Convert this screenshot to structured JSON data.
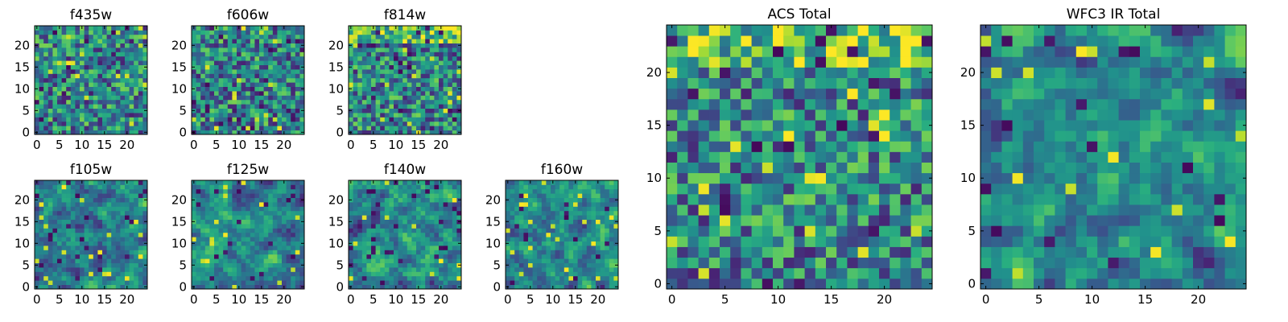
{
  "chart_data": [
    {
      "type": "heatmap",
      "title": "f435w",
      "xlabel": "",
      "ylabel": "",
      "xlim": [
        0,
        24
      ],
      "ylim": [
        0,
        24
      ],
      "grid": false,
      "xticks": [
        "0",
        "5",
        "10",
        "15",
        "20"
      ],
      "yticks": [
        "0",
        "5",
        "10",
        "15",
        "20"
      ],
      "cmap": "viridis",
      "size": 25,
      "seed": 11,
      "pattern": "noise"
    },
    {
      "type": "heatmap",
      "title": "f606w",
      "xlabel": "",
      "ylabel": "",
      "xlim": [
        0,
        24
      ],
      "ylim": [
        0,
        24
      ],
      "grid": false,
      "xticks": [
        "0",
        "5",
        "10",
        "15",
        "20"
      ],
      "yticks": [
        "0",
        "5",
        "10",
        "15",
        "20"
      ],
      "cmap": "viridis",
      "size": 25,
      "seed": 23,
      "pattern": "noise"
    },
    {
      "type": "heatmap",
      "title": "f814w",
      "xlabel": "",
      "ylabel": "",
      "xlim": [
        0,
        24
      ],
      "ylim": [
        0,
        24
      ],
      "grid": false,
      "xticks": [
        "0",
        "5",
        "10",
        "15",
        "20"
      ],
      "yticks": [
        "0",
        "5",
        "10",
        "15",
        "20"
      ],
      "cmap": "viridis",
      "size": 25,
      "seed": 37,
      "pattern": "topband"
    },
    {
      "type": "heatmap",
      "title": "f105w",
      "xlabel": "",
      "ylabel": "",
      "xlim": [
        0,
        24
      ],
      "ylim": [
        0,
        24
      ],
      "grid": false,
      "xticks": [
        "0",
        "5",
        "10",
        "15",
        "20"
      ],
      "yticks": [
        "0",
        "5",
        "10",
        "15",
        "20"
      ],
      "cmap": "viridis",
      "size": 25,
      "seed": 41,
      "pattern": "smooth"
    },
    {
      "type": "heatmap",
      "title": "f125w",
      "xlabel": "",
      "ylabel": "",
      "xlim": [
        0,
        24
      ],
      "ylim": [
        0,
        24
      ],
      "grid": false,
      "xticks": [
        "0",
        "5",
        "10",
        "15",
        "20"
      ],
      "yticks": [
        "0",
        "5",
        "10",
        "15",
        "20"
      ],
      "cmap": "viridis",
      "size": 25,
      "seed": 53,
      "pattern": "smooth"
    },
    {
      "type": "heatmap",
      "title": "f140w",
      "xlabel": "",
      "ylabel": "",
      "xlim": [
        0,
        24
      ],
      "ylim": [
        0,
        24
      ],
      "grid": false,
      "xticks": [
        "0",
        "5",
        "10",
        "15",
        "20"
      ],
      "yticks": [
        "0",
        "5",
        "10",
        "15",
        "20"
      ],
      "cmap": "viridis",
      "size": 25,
      "seed": 67,
      "pattern": "smooth"
    },
    {
      "type": "heatmap",
      "title": "f160w",
      "xlabel": "",
      "ylabel": "",
      "xlim": [
        0,
        24
      ],
      "ylim": [
        0,
        24
      ],
      "grid": false,
      "xticks": [
        "0",
        "5",
        "10",
        "15",
        "20"
      ],
      "yticks": [
        "0",
        "5",
        "10",
        "15",
        "20"
      ],
      "cmap": "viridis",
      "size": 25,
      "seed": 79,
      "pattern": "smooth"
    },
    {
      "type": "heatmap",
      "title": "ACS Total",
      "xlabel": "",
      "ylabel": "",
      "xlim": [
        0,
        24
      ],
      "ylim": [
        0,
        24
      ],
      "grid": false,
      "xticks": [
        "0",
        "5",
        "10",
        "15",
        "20"
      ],
      "yticks": [
        "0",
        "5",
        "10",
        "15",
        "20"
      ],
      "cmap": "viridis",
      "size": 25,
      "seed": 97,
      "pattern": "topband"
    },
    {
      "type": "heatmap",
      "title": "WFC3 IR Total",
      "xlabel": "",
      "ylabel": "",
      "xlim": [
        0,
        24
      ],
      "ylim": [
        0,
        24
      ],
      "grid": false,
      "xticks": [
        "0",
        "5",
        "10",
        "15",
        "20"
      ],
      "yticks": [
        "0",
        "5",
        "10",
        "15",
        "20"
      ],
      "cmap": "viridis",
      "size": 25,
      "seed": 113,
      "pattern": "smooth"
    }
  ]
}
